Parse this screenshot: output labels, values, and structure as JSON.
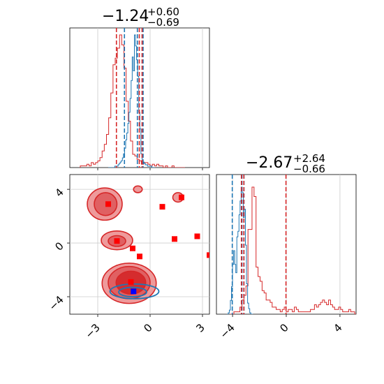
{
  "chart_data": {
    "type": "scatter",
    "colors": {
      "series_a": "#d62728",
      "series_b": "#1f77b4",
      "marker_red": "#ff0000",
      "marker_blue": "#0000ff",
      "grid": "#cccccc"
    },
    "grid": true,
    "panels": [
      {
        "id": "top_hist",
        "type": "histogram",
        "title": {
          "main": "−1.24",
          "sup": "+0.60",
          "sub": "−0.69"
        },
        "xlim": [
          -4.6,
          3.4
        ],
        "quantile_lines": {
          "series_a": [
            -1.93,
            -0.62,
            -0.46
          ],
          "series_b": [
            -1.47,
            -0.73,
            -0.4
          ]
        },
        "series_a_hist": {
          "x0": -4.0,
          "dx": 0.125,
          "counts": [
            1,
            1,
            1,
            2,
            1,
            3,
            2,
            3,
            4,
            6,
            10,
            14,
            20,
            30,
            45,
            62,
            66,
            72,
            80,
            74,
            60,
            40,
            28,
            16,
            8,
            7,
            5,
            4,
            2,
            3,
            3,
            2,
            1,
            2,
            1,
            2,
            1,
            1,
            0,
            1,
            0,
            0,
            1,
            0,
            0,
            0,
            0,
            0
          ]
        },
        "series_b_hist": {
          "x0": -2.4,
          "dx": 0.0625,
          "counts": [
            0,
            0,
            0,
            0,
            0,
            0,
            1,
            1,
            1,
            2,
            3,
            4,
            5,
            7,
            10,
            14,
            20,
            25,
            32,
            40,
            50,
            63,
            80,
            70,
            96,
            88,
            78,
            66,
            40,
            28,
            10,
            6,
            4,
            3,
            2,
            2,
            1,
            1,
            1,
            1,
            0,
            0,
            0
          ]
        }
      },
      {
        "id": "right_hist",
        "type": "histogram",
        "title": {
          "main": "−2.67",
          "sup": "+2.64",
          "sub": "−0.66"
        },
        "xlim": [
          -5.2,
          5.2
        ],
        "xticks": [
          -4,
          0,
          4
        ],
        "xtick_labels": [
          "−4",
          "0",
          "4"
        ],
        "quantile_lines": {
          "series_a": [
            -3.34,
            -3.16,
            -0.02
          ],
          "series_b": [
            -4.02,
            -3.3,
            -3.15
          ]
        },
        "series_a_hist": {
          "x0": -4.2,
          "dx": 0.15,
          "counts": [
            0,
            0,
            1,
            1,
            1,
            3,
            6,
            8,
            12,
            36,
            36,
            54,
            50,
            20,
            16,
            14,
            10,
            9,
            6,
            6,
            5,
            3,
            3,
            2,
            2,
            1,
            2,
            3,
            1,
            2,
            2,
            1,
            3,
            2,
            1,
            1,
            1,
            1,
            1,
            1,
            2,
            2,
            4,
            3,
            4,
            5,
            6,
            5,
            4,
            6,
            4,
            3,
            2,
            2,
            3,
            2,
            1,
            1,
            1,
            2,
            1,
            1,
            0,
            0,
            0,
            0,
            0,
            0
          ]
        },
        "series_b_hist": {
          "x0": -4.4,
          "dx": 0.08,
          "counts": [
            0,
            1,
            3,
            10,
            20,
            36,
            46,
            36,
            30,
            56,
            60,
            72,
            82,
            92,
            88,
            70,
            76,
            50,
            22,
            8,
            4,
            1,
            0,
            0
          ]
        }
      },
      {
        "id": "scatter_2d",
        "type": "contour-scatter",
        "xlim": [
          -4.6,
          3.4
        ],
        "ylim": [
          -5.3,
          5.1
        ],
        "xticks": [
          -3,
          0,
          3
        ],
        "xtick_labels": [
          "−3",
          "0",
          "3"
        ],
        "yticks": [
          4,
          0,
          -4
        ],
        "ytick_labels": [
          "4",
          "0",
          "−4"
        ],
        "contours_series_a": [
          {
            "cx": -2.6,
            "cy": 2.9,
            "rx": 1.0,
            "ry": 1.2,
            "level": 1
          },
          {
            "cx": -2.55,
            "cy": 2.9,
            "rx": 0.65,
            "ry": 0.85,
            "level": 2
          },
          {
            "cx": -1.9,
            "cy": 0.2,
            "rx": 0.9,
            "ry": 0.7,
            "level": 1
          },
          {
            "cx": -1.9,
            "cy": 0.15,
            "rx": 0.5,
            "ry": 0.4,
            "level": 2
          },
          {
            "cx": -0.7,
            "cy": 4.0,
            "rx": 0.25,
            "ry": 0.25,
            "level": 1
          },
          {
            "cx": -1.2,
            "cy": -3.0,
            "rx": 1.55,
            "ry": 1.5,
            "level": 1
          },
          {
            "cx": -1.2,
            "cy": -2.95,
            "rx": 1.2,
            "ry": 1.2,
            "level": 2
          },
          {
            "cx": -1.1,
            "cy": -2.95,
            "rx": 0.85,
            "ry": 0.85,
            "level": 3
          },
          {
            "cx": 1.6,
            "cy": 3.4,
            "rx": 0.3,
            "ry": 0.35,
            "level": 1
          }
        ],
        "contours_series_b": [
          {
            "cx": -0.9,
            "cy": -3.6,
            "rx": 1.4,
            "ry": 0.55
          },
          {
            "cx": -1.0,
            "cy": -3.65,
            "rx": 0.8,
            "ry": 0.35
          }
        ],
        "red_markers": [
          {
            "x": -2.4,
            "y": 2.9
          },
          {
            "x": -1.9,
            "y": 0.15
          },
          {
            "x": -1.0,
            "y": -0.4
          },
          {
            "x": -0.6,
            "y": -1.0
          },
          {
            "x": 0.7,
            "y": 2.7
          },
          {
            "x": 1.8,
            "y": 3.4
          },
          {
            "x": 1.4,
            "y": 0.3
          },
          {
            "x": 2.7,
            "y": 0.5
          },
          {
            "x": 3.4,
            "y": -0.9
          },
          {
            "x": -1.1,
            "y": -2.9
          }
        ],
        "blue_markers": [
          {
            "x": -0.95,
            "y": -3.6
          }
        ]
      }
    ]
  }
}
